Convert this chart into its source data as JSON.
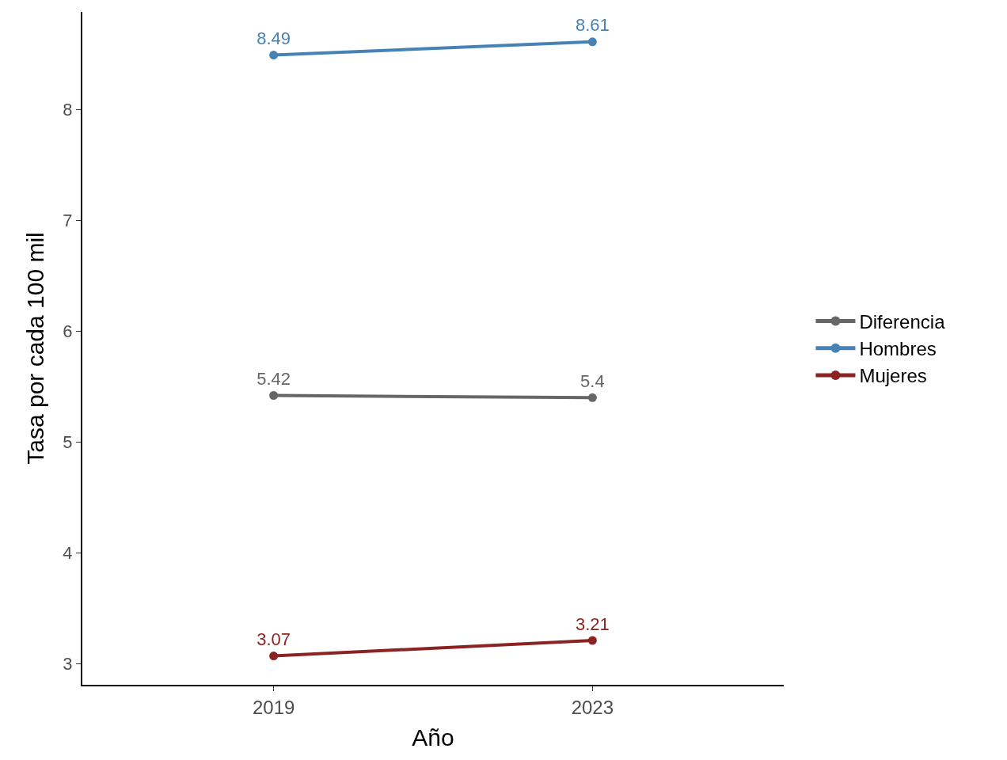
{
  "chart_data": {
    "type": "line",
    "xlabel": "Año",
    "ylabel": "Tasa por cada 100 mil",
    "categories": [
      "2019",
      "2023"
    ],
    "series": [
      {
        "name": "Diferencia",
        "color": "#666666",
        "values": [
          5.42,
          5.4
        ]
      },
      {
        "name": "Hombres",
        "color": "#4682b4",
        "values": [
          8.49,
          8.61
        ]
      },
      {
        "name": "Mujeres",
        "color": "#8b2323",
        "values": [
          3.07,
          3.21
        ]
      }
    ],
    "ylim": [
      2.81,
      8.88
    ],
    "yticks": [
      3,
      4,
      5,
      6,
      7,
      8
    ],
    "data_labels": true,
    "marker": "circle",
    "line_style": "solid",
    "legend": "right"
  }
}
